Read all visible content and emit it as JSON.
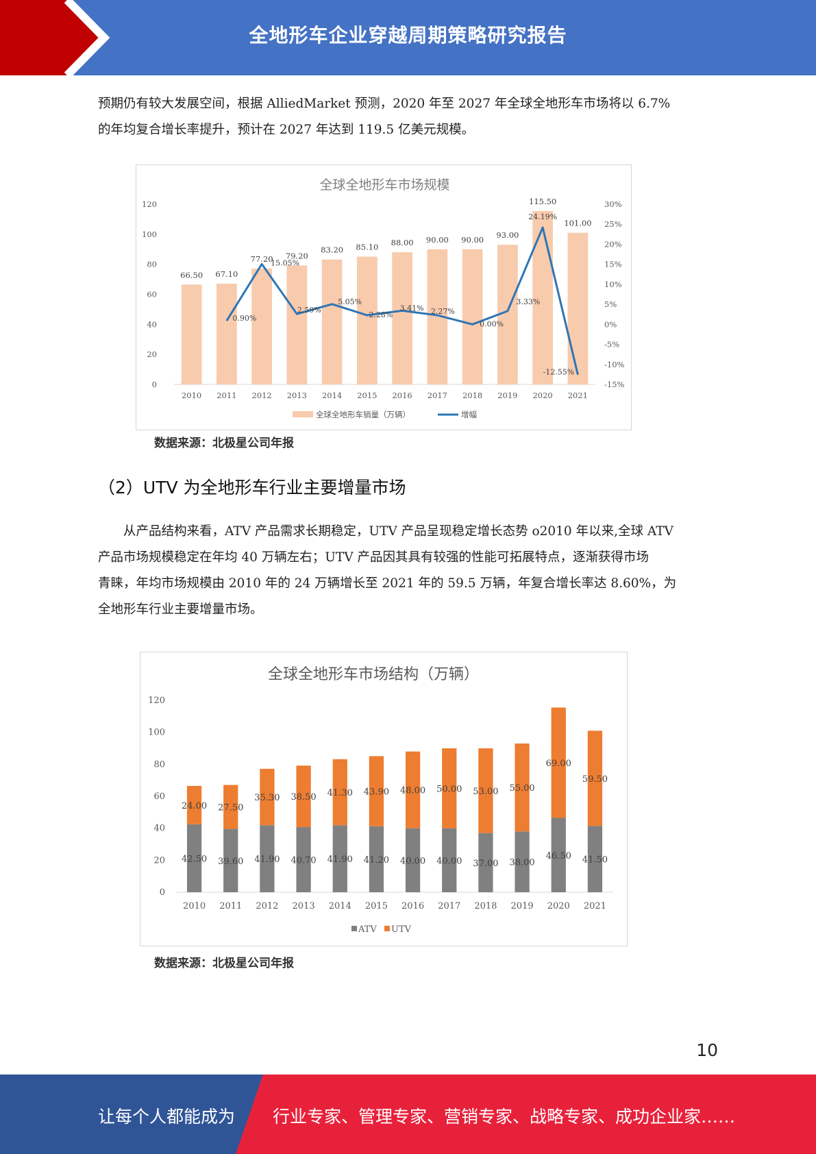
{
  "header": {
    "title": "全地形车企业穿越周期策略研究报告"
  },
  "intro": {
    "line1": "预期仍有较大发展空间，根据 AlliedMarket 预测，2020 年至 2027 年全球全地形车市场将以 6.7%",
    "line2": "的年均复合增长率提升，预计在 2027 年达到 119.5 亿美元规模。"
  },
  "source_label": "数据来源：北极星公司年报",
  "section_title": "（2）UTV 为全地形车行业主要增量市场",
  "body": {
    "line1": "从产品结构来看，ATV 产品需求长期稳定，UTV 产品呈现稳定增长态势 o2010 年以来,全球 ATV",
    "line2": "产品市场规模稳定在年均 40 万辆左右；UTV 产品因其具有较强的性能可拓展特点，逐渐获得市场",
    "line3": "青睐，年均市场规模由 2010 年的 24 万辆增长至 2021 年的 59.5 万辆，年复合增长率达 8.60%，为",
    "line4": "全地形车行业主要增量市场。"
  },
  "page_number": "10",
  "footer": {
    "left": "让每个人都能成为",
    "right": "行业专家、管理专家、营销专家、战略专家、成功企业家……"
  },
  "colors": {
    "header_blue": "#4472c4",
    "header_red": "#c00000",
    "footer_blue": "#2f5597",
    "footer_red": "#e8213b",
    "bar_peach": "#f8cbad",
    "line_blue": "#2e75b6",
    "atv_gray": "#808080",
    "utv_orange": "#ed7d31"
  },
  "chart_data": [
    {
      "type": "bar",
      "title": "全球全地形车市场规模",
      "categories": [
        "2010",
        "2011",
        "2012",
        "2013",
        "2014",
        "2015",
        "2016",
        "2017",
        "2018",
        "2019",
        "2020",
        "2021"
      ],
      "series": [
        {
          "name": "全球全地形车销量（万辆）",
          "type": "bar",
          "axis": "left",
          "values": [
            66.5,
            67.1,
            77.2,
            79.2,
            83.2,
            85.1,
            88.0,
            90.0,
            90.0,
            93.0,
            115.5,
            101.0
          ],
          "labels": [
            "66.50",
            "67.10",
            "77.20",
            "79.20",
            "83.20",
            "85.10",
            "88.00",
            "90.00",
            "90.00",
            "93.00",
            "115.50",
            "101.00"
          ]
        },
        {
          "name": "增幅",
          "type": "line",
          "axis": "right",
          "values": [
            null,
            0.9,
            15.05,
            2.59,
            5.05,
            2.28,
            3.41,
            2.27,
            0.0,
            3.33,
            24.19,
            -12.55
          ],
          "labels": [
            "",
            "0.90%",
            "15.05%",
            "2.59%",
            "5.05%",
            "2.28%",
            "3.41%",
            "2.27%",
            "0.00%",
            "3.33%",
            "24.19%",
            "-12.55%"
          ]
        }
      ],
      "ylim": [
        0,
        120
      ],
      "yticks": [
        "0",
        "20",
        "40",
        "60",
        "80",
        "100",
        "120"
      ],
      "y2lim": [
        -15,
        30
      ],
      "y2ticks": [
        "-15%",
        "-10%",
        "-5%",
        "0%",
        "5%",
        "10%",
        "15%",
        "20%",
        "25%",
        "30%"
      ],
      "legend": "bottom",
      "grid": false
    },
    {
      "type": "bar",
      "stacked": true,
      "title": "全球全地形车市场结构（万辆）",
      "categories": [
        "2010",
        "2011",
        "2012",
        "2013",
        "2014",
        "2015",
        "2016",
        "2017",
        "2018",
        "2019",
        "2020",
        "2021"
      ],
      "series": [
        {
          "name": "ATV",
          "values": [
            42.5,
            39.6,
            41.9,
            40.7,
            41.9,
            41.2,
            40.0,
            40.0,
            37.0,
            38.0,
            46.5,
            41.5
          ],
          "labels": [
            "42.50",
            "39.60",
            "41.90",
            "40.70",
            "41.90",
            "41.20",
            "40.00",
            "40.00",
            "37.00",
            "38.00",
            "46.50",
            "41.50"
          ]
        },
        {
          "name": "UTV",
          "values": [
            24.0,
            27.5,
            35.3,
            38.5,
            41.3,
            43.9,
            48.0,
            50.0,
            53.0,
            55.0,
            69.0,
            59.5
          ],
          "labels": [
            "24.00",
            "27.50",
            "35.30",
            "38.50",
            "41.30",
            "43.90",
            "48.00",
            "50.00",
            "53.00",
            "55.00",
            "69.00",
            "59.50"
          ]
        }
      ],
      "ylim": [
        0,
        120
      ],
      "yticks": [
        "0",
        "20",
        "40",
        "60",
        "80",
        "100",
        "120"
      ],
      "legend": "bottom",
      "grid": false
    }
  ]
}
